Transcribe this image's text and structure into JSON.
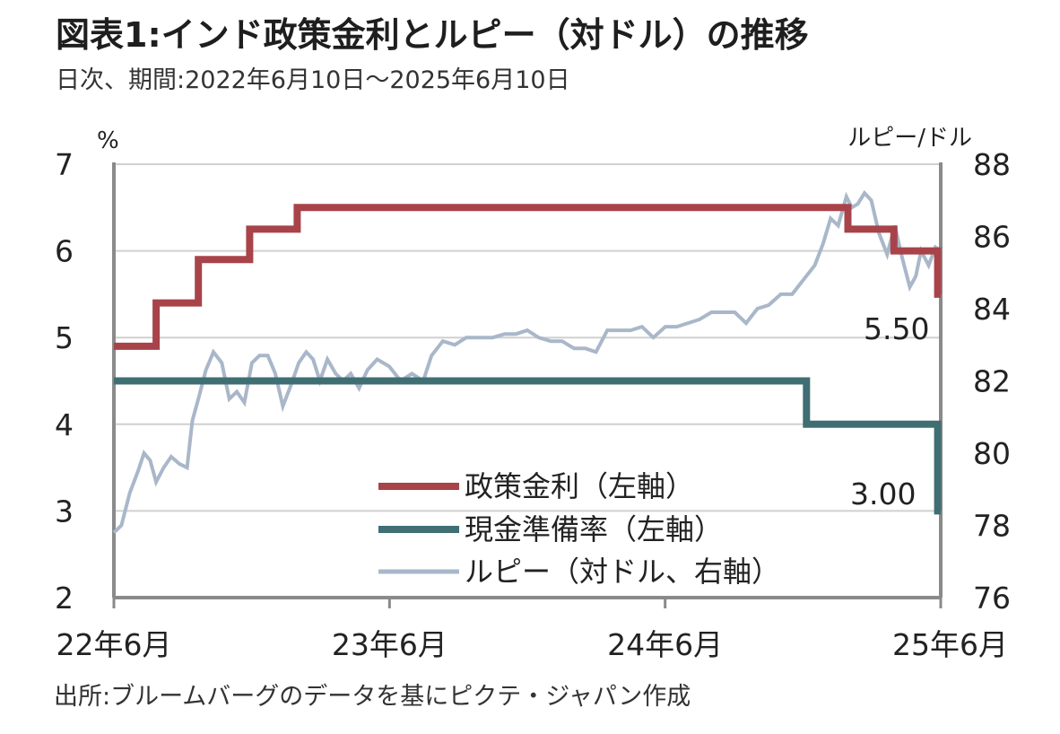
{
  "header": {
    "title": "図表1:インド政策金利とルピー（対ドル）の推移",
    "subtitle": "日次、期間:2022年6月10日～2025年6月10日"
  },
  "footer": {
    "source": "出所:ブルームバーグのデータを基にピクテ・ジャパン作成"
  },
  "chart_data": {
    "type": "line",
    "y_left": {
      "label": "%",
      "range": [
        2,
        7
      ],
      "ticks": [
        "2",
        "3",
        "4",
        "5",
        "6",
        "7"
      ]
    },
    "y_right": {
      "label": "ルピー/ドル",
      "range": [
        76,
        88
      ],
      "ticks": [
        "76",
        "78",
        "80",
        "82",
        "84",
        "86",
        "88"
      ]
    },
    "x": {
      "range": [
        "2022-06-10",
        "2025-06-10"
      ],
      "ticks": [
        "22年6月",
        "23年6月",
        "24年6月",
        "25年6月"
      ]
    },
    "grid": true,
    "legend_position": "bottom-center",
    "colors": {
      "policy_rate": "#a8434a",
      "crr": "#3f6e73",
      "rupee": "#a9b7c9",
      "axis": "#8a8a8a",
      "grid": "#d0d0d0"
    },
    "annotations": [
      "5.50",
      "3.00"
    ],
    "series": [
      {
        "name": "政策金利（左軸）",
        "axis": "left",
        "style": "step",
        "points": [
          [
            "2022-06-10",
            4.9
          ],
          [
            "2022-08-05",
            5.4
          ],
          [
            "2022-09-30",
            5.9
          ],
          [
            "2022-12-07",
            6.25
          ],
          [
            "2023-02-08",
            6.5
          ],
          [
            "2025-02-07",
            6.25
          ],
          [
            "2025-04-09",
            6.0
          ],
          [
            "2025-06-06",
            5.5
          ],
          [
            "2025-06-10",
            5.5
          ]
        ]
      },
      {
        "name": "現金準備率（左軸）",
        "axis": "left",
        "style": "step",
        "points": [
          [
            "2022-06-10",
            4.5
          ],
          [
            "2024-12-14",
            4.0
          ],
          [
            "2025-06-06",
            3.0
          ],
          [
            "2025-06-10",
            3.0
          ]
        ]
      },
      {
        "name": "ルピー（対ドル、右軸）",
        "axis": "right",
        "style": "line",
        "points": [
          [
            "2022-06-10",
            77.8
          ],
          [
            "2022-06-20",
            78.0
          ],
          [
            "2022-07-01",
            78.9
          ],
          [
            "2022-07-12",
            79.5
          ],
          [
            "2022-07-20",
            80.0
          ],
          [
            "2022-07-28",
            79.8
          ],
          [
            "2022-08-05",
            79.2
          ],
          [
            "2022-08-15",
            79.6
          ],
          [
            "2022-08-25",
            79.9
          ],
          [
            "2022-09-05",
            79.7
          ],
          [
            "2022-09-15",
            79.6
          ],
          [
            "2022-09-22",
            80.9
          ],
          [
            "2022-09-30",
            81.5
          ],
          [
            "2022-10-10",
            82.3
          ],
          [
            "2022-10-20",
            82.8
          ],
          [
            "2022-10-31",
            82.5
          ],
          [
            "2022-11-10",
            81.5
          ],
          [
            "2022-11-20",
            81.7
          ],
          [
            "2022-11-30",
            81.4
          ],
          [
            "2022-12-10",
            82.5
          ],
          [
            "2022-12-20",
            82.7
          ],
          [
            "2022-12-31",
            82.7
          ],
          [
            "2023-01-10",
            82.2
          ],
          [
            "2023-01-20",
            81.3
          ],
          [
            "2023-01-31",
            81.9
          ],
          [
            "2023-02-10",
            82.5
          ],
          [
            "2023-02-20",
            82.8
          ],
          [
            "2023-03-01",
            82.6
          ],
          [
            "2023-03-10",
            82.0
          ],
          [
            "2023-03-20",
            82.6
          ],
          [
            "2023-03-31",
            82.2
          ],
          [
            "2023-04-10",
            82.0
          ],
          [
            "2023-04-20",
            82.2
          ],
          [
            "2023-05-01",
            81.8
          ],
          [
            "2023-05-12",
            82.3
          ],
          [
            "2023-05-25",
            82.6
          ],
          [
            "2023-06-10",
            82.4
          ],
          [
            "2023-06-25",
            82.0
          ],
          [
            "2023-07-10",
            82.2
          ],
          [
            "2023-07-25",
            82.0
          ],
          [
            "2023-08-05",
            82.7
          ],
          [
            "2023-08-20",
            83.1
          ],
          [
            "2023-09-05",
            83.0
          ],
          [
            "2023-09-20",
            83.2
          ],
          [
            "2023-10-10",
            83.2
          ],
          [
            "2023-10-25",
            83.2
          ],
          [
            "2023-11-10",
            83.3
          ],
          [
            "2023-11-25",
            83.3
          ],
          [
            "2023-12-10",
            83.4
          ],
          [
            "2023-12-25",
            83.2
          ],
          [
            "2024-01-10",
            83.1
          ],
          [
            "2024-01-25",
            83.1
          ],
          [
            "2024-02-10",
            82.9
          ],
          [
            "2024-02-25",
            82.9
          ],
          [
            "2024-03-10",
            82.8
          ],
          [
            "2024-03-25",
            83.4
          ],
          [
            "2024-04-10",
            83.4
          ],
          [
            "2024-04-25",
            83.4
          ],
          [
            "2024-05-10",
            83.5
          ],
          [
            "2024-05-25",
            83.2
          ],
          [
            "2024-06-10",
            83.5
          ],
          [
            "2024-06-25",
            83.5
          ],
          [
            "2024-07-10",
            83.6
          ],
          [
            "2024-07-25",
            83.7
          ],
          [
            "2024-08-10",
            83.9
          ],
          [
            "2024-08-25",
            83.9
          ],
          [
            "2024-09-10",
            83.9
          ],
          [
            "2024-09-25",
            83.6
          ],
          [
            "2024-10-10",
            84.0
          ],
          [
            "2024-10-25",
            84.1
          ],
          [
            "2024-11-10",
            84.4
          ],
          [
            "2024-11-25",
            84.4
          ],
          [
            "2024-12-10",
            84.8
          ],
          [
            "2024-12-25",
            85.2
          ],
          [
            "2025-01-05",
            85.8
          ],
          [
            "2025-01-15",
            86.5
          ],
          [
            "2025-01-25",
            86.3
          ],
          [
            "2025-02-05",
            87.1
          ],
          [
            "2025-02-12",
            86.8
          ],
          [
            "2025-02-20",
            86.9
          ],
          [
            "2025-03-01",
            87.2
          ],
          [
            "2025-03-10",
            87.0
          ],
          [
            "2025-03-20",
            86.1
          ],
          [
            "2025-03-31",
            85.5
          ],
          [
            "2025-04-10",
            86.3
          ],
          [
            "2025-04-20",
            85.4
          ],
          [
            "2025-04-30",
            84.6
          ],
          [
            "2025-05-08",
            84.9
          ],
          [
            "2025-05-15",
            85.6
          ],
          [
            "2025-05-25",
            85.2
          ],
          [
            "2025-06-03",
            85.7
          ],
          [
            "2025-06-10",
            85.6
          ]
        ]
      }
    ]
  }
}
